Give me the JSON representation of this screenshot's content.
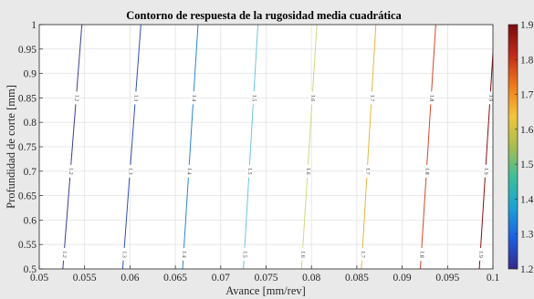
{
  "chart_data": {
    "type": "contour",
    "title": "Contorno de respuesta de la rugosidad media cuadrática",
    "xlabel": "Avance [mm/rev]",
    "ylabel": "Profundidad de corte [mm]",
    "xlim": [
      0.05,
      0.1
    ],
    "ylim": [
      0.5,
      1.0
    ],
    "grid": true,
    "x_ticks": [
      "0.05",
      "0.055",
      "0.06",
      "0.065",
      "0.07",
      "0.075",
      "0.08",
      "0.085",
      "0.09",
      "0.095",
      "0.1"
    ],
    "y_ticks": [
      "0.5",
      "0.55",
      "0.6",
      "0.65",
      "0.7",
      "0.75",
      "0.8",
      "0.85",
      "0.9",
      "0.95",
      "1"
    ],
    "colorbar": {
      "range": [
        1.2,
        1.9
      ],
      "ticks": [
        "1.2",
        "1.3",
        "1.4",
        "1.5",
        "1.6",
        "1.7",
        "1.8",
        "1.9"
      ],
      "colormap": "parula-like",
      "stops": [
        "#352a87",
        "#1d5de2",
        "#19a2d5",
        "#3cbf9b",
        "#a7bd4f",
        "#f3c53a",
        "#f07a1a",
        "#c12a1a",
        "#7a0d0d"
      ]
    },
    "contours": [
      {
        "level": 1.2,
        "label": "1.2",
        "color": "#3b3d93",
        "x_at_ymin": 0.0526,
        "x_at_ymax": 0.0547
      },
      {
        "level": 1.3,
        "label": "1.3",
        "color": "#2f4fb5",
        "x_at_ymin": 0.0592,
        "x_at_ymax": 0.0612
      },
      {
        "level": 1.4,
        "label": "1.4",
        "color": "#2a86cf",
        "x_at_ymin": 0.0658,
        "x_at_ymax": 0.0675
      },
      {
        "level": 1.5,
        "label": "1.5",
        "color": "#6cc6dc",
        "x_at_ymin": 0.0725,
        "x_at_ymax": 0.0741
      },
      {
        "level": 1.6,
        "label": "1.6",
        "color": "#cfd985",
        "x_at_ymin": 0.0789,
        "x_at_ymax": 0.0806
      },
      {
        "level": 1.7,
        "label": "1.7",
        "color": "#e6b740",
        "x_at_ymin": 0.0855,
        "x_at_ymax": 0.0871
      },
      {
        "level": 1.8,
        "label": "1.8",
        "color": "#d7472c",
        "x_at_ymin": 0.092,
        "x_at_ymax": 0.0937
      },
      {
        "level": 1.9,
        "label": "1.9",
        "color": "#8a1010",
        "x_at_ymin": 0.0985,
        "x_at_ymax": 0.1002
      }
    ],
    "label_depths": [
      0.53,
      0.7,
      0.85
    ]
  }
}
